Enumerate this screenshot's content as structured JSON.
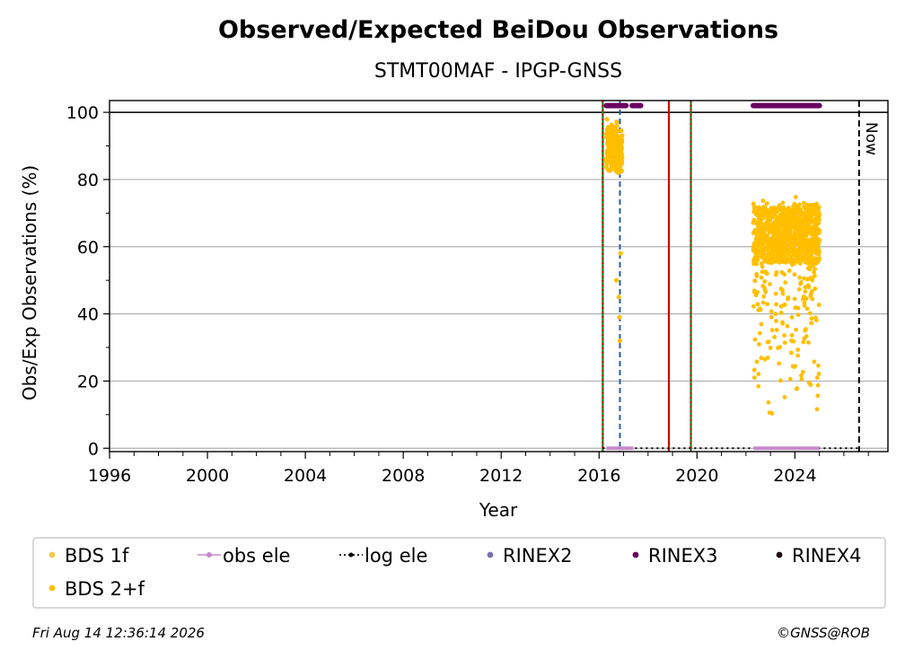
{
  "chart_data": {
    "type": "scatter",
    "title": "Observed/Expected BeiDou Observations",
    "subtitle": "STMT00MAF - IPGP-GNSS",
    "xlabel": "Year",
    "ylabel": "Obs/Exp Observations (%)",
    "xlim": [
      1996,
      2027.8
    ],
    "ylim": [
      -1,
      103.5
    ],
    "xticks": [
      "1996",
      "2000",
      "2004",
      "2008",
      "2012",
      "2016",
      "2020",
      "2024"
    ],
    "yticks": [
      "0",
      "20",
      "40",
      "60",
      "80",
      "100"
    ],
    "grid": "horizontal",
    "legend_placement": "below",
    "now_label": "Now",
    "now_year": 2026.62,
    "reference_line_y": 100,
    "vertical_lines": [
      {
        "x": 2016.15,
        "color": "#1a7f1a",
        "style": "solid"
      },
      {
        "x": 2016.15,
        "color": "#cc0000",
        "style": "dotted"
      },
      {
        "x": 2016.85,
        "color": "#1f5fa8",
        "style": "dashed"
      },
      {
        "x": 2018.85,
        "color": "#cc0000",
        "style": "solid"
      },
      {
        "x": 2019.75,
        "color": "#1a7f1a",
        "style": "solid"
      },
      {
        "x": 2019.75,
        "color": "#cc0000",
        "style": "dotted"
      }
    ],
    "series": [
      {
        "name": "BDS 1f",
        "color": "#f5c84c",
        "marker": "dot"
      },
      {
        "name": "BDS 2+f",
        "color": "#ffbf00",
        "marker": "dot",
        "segments": [
          {
            "x_range": [
              2016.3,
              2016.95
            ],
            "y_band": [
              72,
              99
            ],
            "outliers": [
              45,
              50,
              32,
              39,
              58
            ]
          },
          {
            "x_range": [
              2022.3,
              2025.0
            ],
            "y_band": [
              55,
              72
            ],
            "low_scatter": [
              5,
              55
            ]
          }
        ]
      },
      {
        "name": "obs ele",
        "color": "#c58ac9",
        "marker": "line",
        "segments": [
          {
            "x_range": [
              2016.3,
              2017.4
            ],
            "y": 0
          },
          {
            "x_range": [
              2022.3,
              2025.0
            ],
            "y": 0
          }
        ]
      },
      {
        "name": "log ele",
        "color": "#000000",
        "marker": "dotted-line",
        "segments": [
          {
            "x_range": [
              2016.15,
              2026.62
            ],
            "y": 0
          }
        ]
      },
      {
        "name": "RINEX2",
        "color": "#7b6fb5",
        "marker": "dot"
      },
      {
        "name": "RINEX3",
        "color": "#6a0060",
        "marker": "dot",
        "segments": [
          {
            "x_range": [
              2016.3,
              2017.1
            ],
            "y": 102
          },
          {
            "x_range": [
              2017.35,
              2017.7
            ],
            "y": 102
          },
          {
            "x_range": [
              2022.3,
              2025.0
            ],
            "y": 102
          }
        ]
      },
      {
        "name": "RINEX4",
        "color": "#1a0010",
        "marker": "dot"
      }
    ]
  },
  "footer": {
    "timestamp": "Fri Aug 14 12:36:14 2026",
    "copyright": "©GNSS@ROB"
  }
}
